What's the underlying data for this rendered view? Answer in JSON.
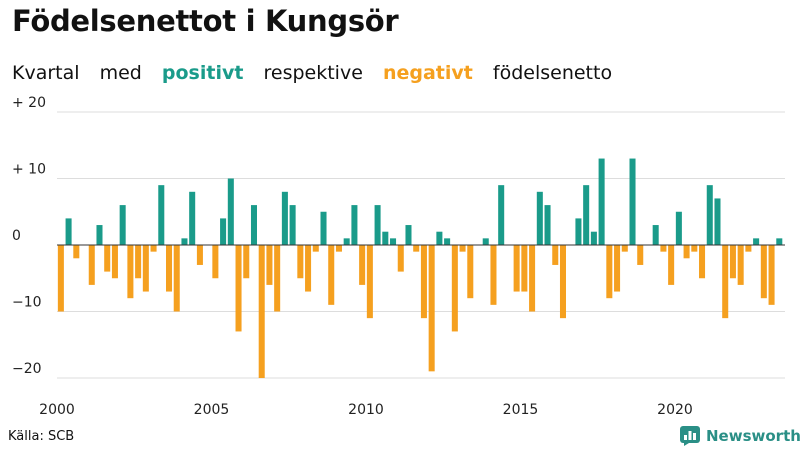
{
  "title": "Födelsenettot i Kungsör",
  "subtitle": {
    "part1": "Kvartal",
    "part2": "med",
    "positive": "positivt",
    "part3": "respektive",
    "negative": "negativt",
    "part4": "födelsenetto"
  },
  "source": "Källa: SCB",
  "brand": "Newsworthy",
  "colors": {
    "positive": "#1a9b8a",
    "negative": "#f5a01f",
    "grid": "#dddddd",
    "axis": "#333333"
  },
  "chart_data": {
    "type": "bar",
    "unit": "quarter",
    "x_start": "2000",
    "x_end": "2023Q3",
    "ylim": [
      -20,
      20
    ],
    "yticks": [
      {
        "value": 20,
        "label": "+ 20"
      },
      {
        "value": 10,
        "label": "+ 10"
      },
      {
        "value": 0,
        "label": "0"
      },
      {
        "value": -10,
        "label": "−10"
      },
      {
        "value": -20,
        "label": "−20"
      }
    ],
    "xticks": [
      "2000",
      "2005",
      "2010",
      "2015",
      "2020"
    ],
    "values": [
      -10,
      4,
      -2,
      0,
      -6,
      3,
      -4,
      -5,
      6,
      -8,
      -5,
      -7,
      -1,
      9,
      -7,
      -10,
      1,
      8,
      -3,
      0,
      -5,
      4,
      10,
      -13,
      -5,
      6,
      -20,
      -6,
      -10,
      8,
      6,
      -5,
      -7,
      -1,
      5,
      -9,
      -1,
      1,
      6,
      -6,
      -11,
      6,
      2,
      1,
      -4,
      3,
      -1,
      -11,
      -19,
      2,
      1,
      -13,
      -1,
      -8,
      0,
      1,
      -9,
      9,
      0,
      -7,
      -7,
      -10,
      8,
      6,
      -3,
      -11,
      0,
      4,
      9,
      2,
      13,
      -8,
      -7,
      -1,
      13,
      -3,
      0,
      3,
      -1,
      -6,
      5,
      -2,
      -1,
      -5,
      9,
      7,
      -11,
      -5,
      -6,
      -1,
      1,
      -8,
      -9,
      1
    ]
  }
}
